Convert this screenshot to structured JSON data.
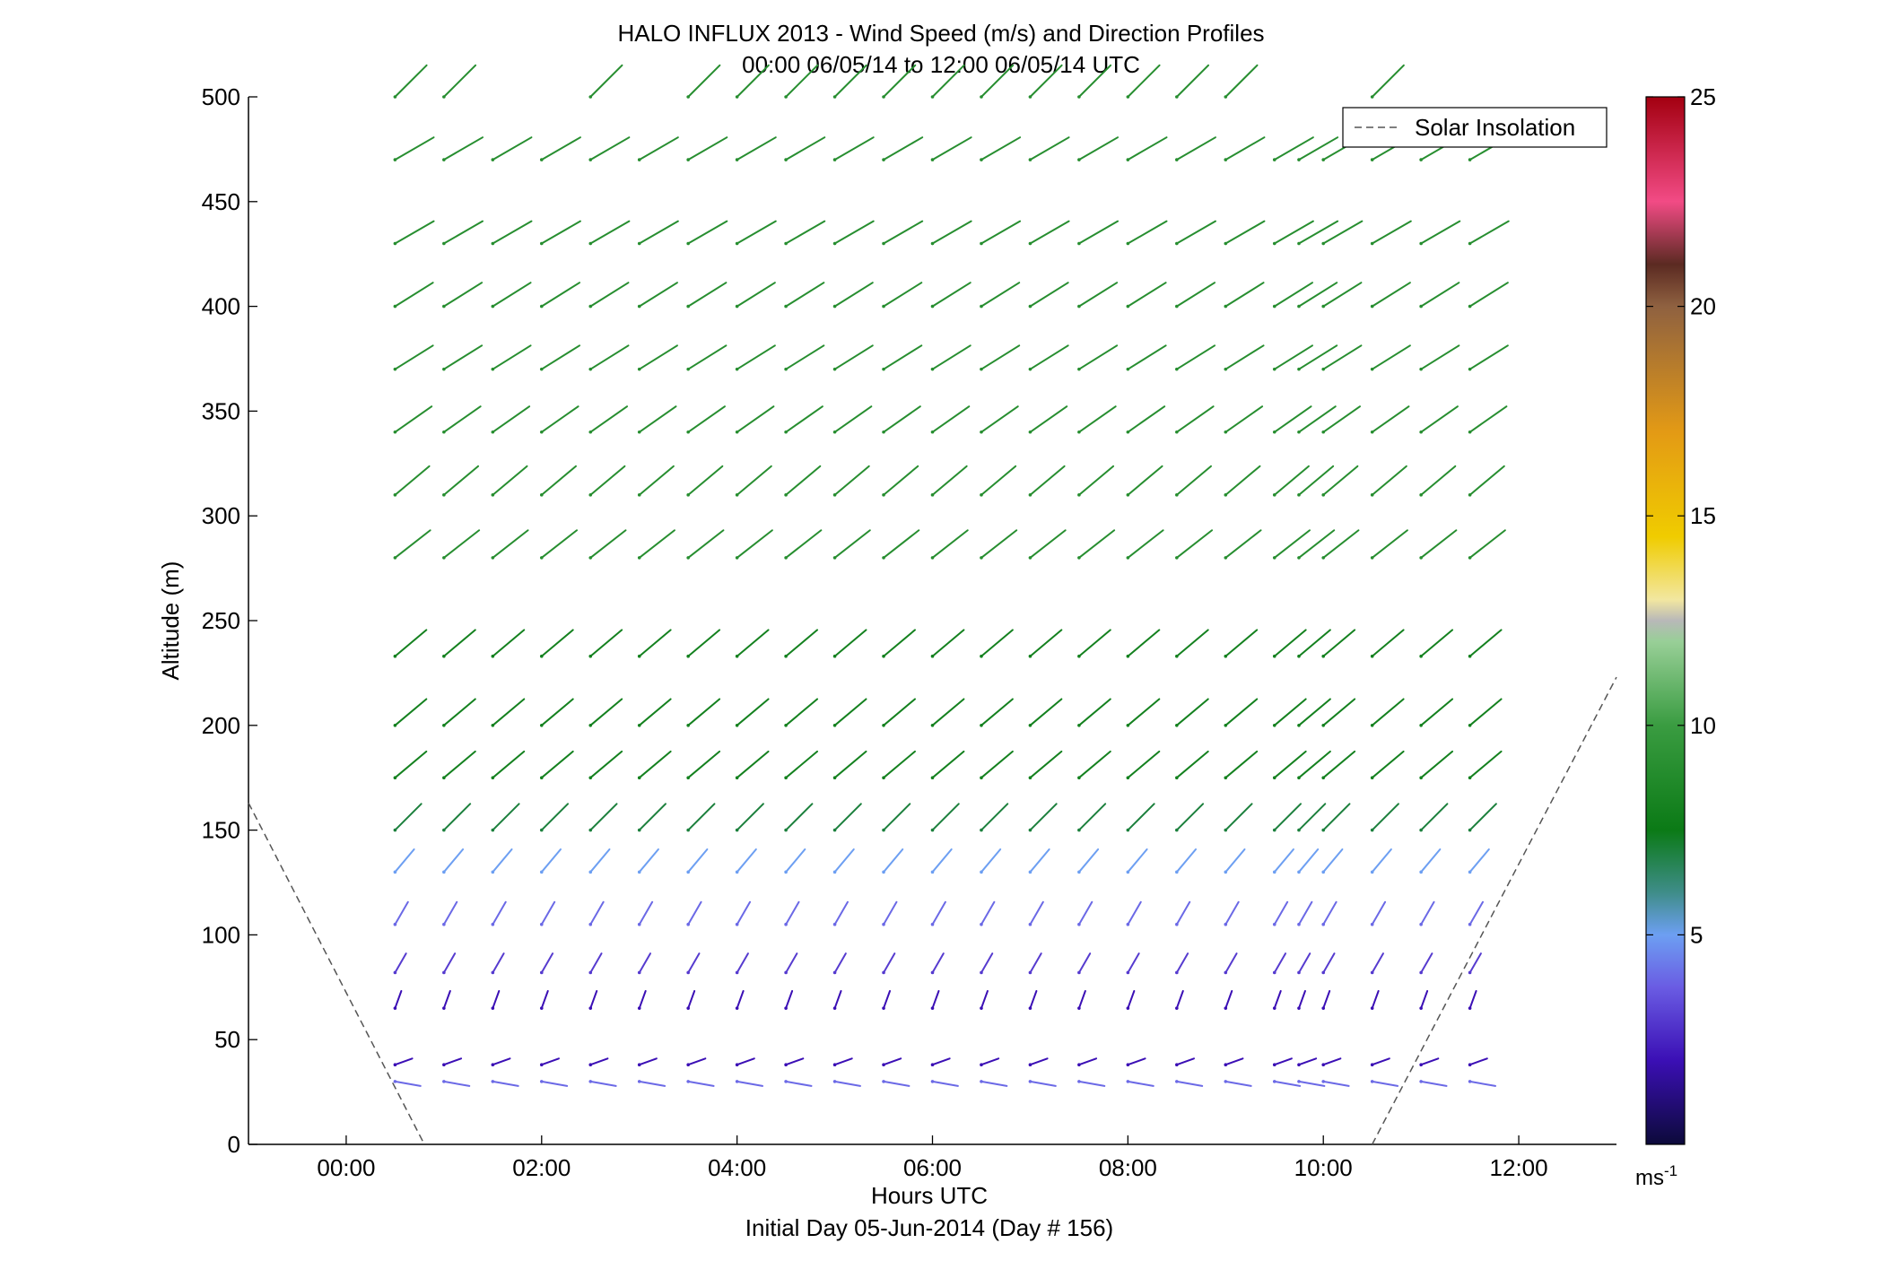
{
  "chart_data": {
    "type": "scatter",
    "title": "HALO INFLUX 2013 - Wind Speed (m/s) and Direction Profiles",
    "subtitle": "00:00 06/05/14 to 12:00 06/05/14  UTC",
    "xlabel": "Hours UTC",
    "xlabel2": "Initial Day 05-Jun-2014 (Day # 156)",
    "ylabel": "Altitude (m)",
    "xlim": [
      -1,
      13
    ],
    "ylim": [
      0,
      500
    ],
    "x_ticks": [
      0,
      2,
      4,
      6,
      8,
      10,
      12
    ],
    "x_tick_labels": [
      "00:00",
      "02:00",
      "04:00",
      "06:00",
      "08:00",
      "10:00",
      "12:00"
    ],
    "y_ticks": [
      0,
      50,
      100,
      150,
      200,
      250,
      300,
      350,
      400,
      450,
      500
    ],
    "y_tick_labels": [
      "0",
      "50",
      "100",
      "150",
      "200",
      "250",
      "300",
      "350",
      "400",
      "450",
      "500"
    ],
    "grid": false,
    "legend": {
      "placement": "top-right",
      "entries": [
        "Solar Insolation"
      ]
    },
    "colorbar": {
      "range": [
        0,
        25
      ],
      "ticks": [
        5,
        10,
        15,
        20,
        25
      ],
      "tick_labels": [
        "5",
        "10",
        "15",
        "20",
        "25"
      ],
      "unit_base": "ms",
      "unit_exp": "-1"
    },
    "solar_insolation": [
      {
        "x": [
          -1.0,
          0.8
        ],
        "y": [
          163,
          0
        ]
      },
      {
        "x": [
          10.5,
          13.0
        ],
        "y": [
          0,
          223
        ]
      }
    ],
    "wind_barbs": {
      "times": [
        0.5,
        1.0,
        1.5,
        2.0,
        2.5,
        3.0,
        3.5,
        4.0,
        4.5,
        5.0,
        5.5,
        6.0,
        6.5,
        7.0,
        7.5,
        8.0,
        8.5,
        9.0,
        9.5,
        9.75,
        10.0,
        10.5,
        11.0,
        11.5
      ],
      "note": "direction in degrees (0=east, counter-clockwise), speed in m/s",
      "profiles": [
        {
          "altitude": 500,
          "direction": 45,
          "speed": 9,
          "times": [
            0.5,
            1.0,
            2.5,
            3.5,
            4.0,
            4.5,
            5.0,
            5.5,
            6.0,
            6.5,
            7.0,
            7.5,
            8.0,
            8.5,
            9.0,
            10.5
          ]
        },
        {
          "altitude": 470,
          "direction": 30,
          "speed": 9
        },
        {
          "altitude": 430,
          "direction": 30,
          "speed": 9
        },
        {
          "altitude": 400,
          "direction": 32,
          "speed": 9
        },
        {
          "altitude": 370,
          "direction": 32,
          "speed": 9
        },
        {
          "altitude": 340,
          "direction": 35,
          "speed": 9
        },
        {
          "altitude": 310,
          "direction": 40,
          "speed": 9
        },
        {
          "altitude": 280,
          "direction": 38,
          "speed": 9
        },
        {
          "altitude": 233,
          "direction": 40,
          "speed": 8
        },
        {
          "altitude": 200,
          "direction": 40,
          "speed": 8
        },
        {
          "altitude": 175,
          "direction": 40,
          "speed": 8
        },
        {
          "altitude": 150,
          "direction": 45,
          "speed": 7
        },
        {
          "altitude": 130,
          "direction": 50,
          "speed": 5
        },
        {
          "altitude": 105,
          "direction": 60,
          "speed": 4
        },
        {
          "altitude": 82,
          "direction": 60,
          "speed": 3
        },
        {
          "altitude": 65,
          "direction": 70,
          "speed": 2
        },
        {
          "altitude": 38,
          "direction": 20,
          "speed": 2
        },
        {
          "altitude": 30,
          "direction": -10,
          "speed": 4
        }
      ]
    }
  }
}
